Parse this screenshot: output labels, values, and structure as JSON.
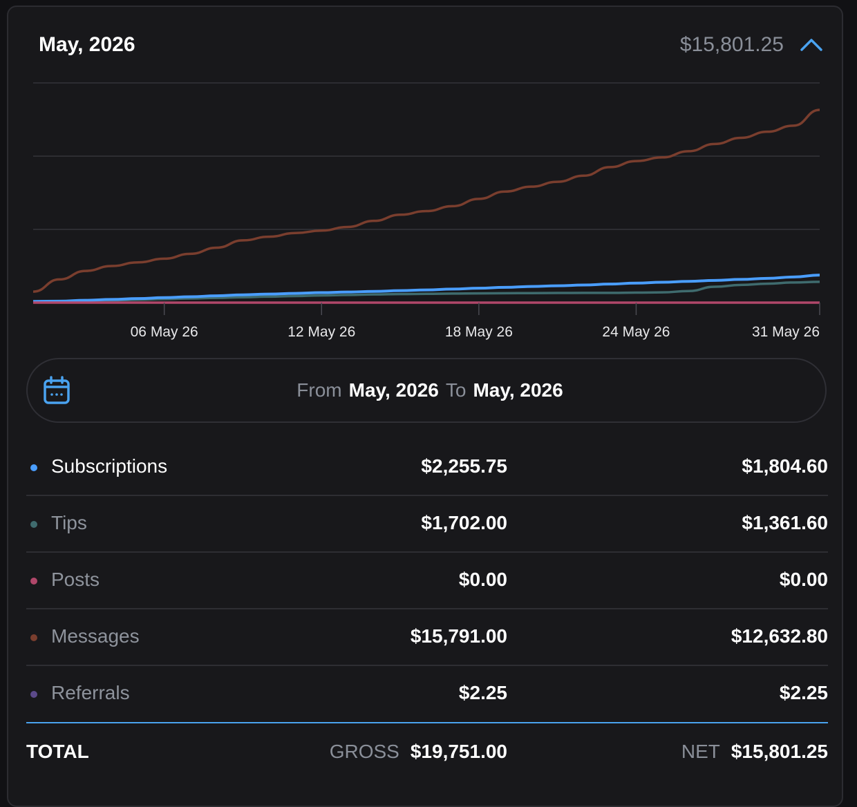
{
  "header": {
    "title": "May, 2026",
    "total": "$15,801.25"
  },
  "colors": {
    "subscriptions": "#4a9eff",
    "tips": "#3f6b6e",
    "posts": "#b0476a",
    "messages": "#7a3e2e",
    "referrals": "#5c4a8a",
    "accent": "#4aa3f0"
  },
  "range": {
    "from_label": "From",
    "from_value": "May, 2026",
    "to_label": "To",
    "to_value": "May, 2026"
  },
  "chart_data": {
    "type": "line",
    "x": [
      "01 May 26",
      "02 May 26",
      "03 May 26",
      "04 May 26",
      "05 May 26",
      "06 May 26",
      "07 May 26",
      "08 May 26",
      "09 May 26",
      "10 May 26",
      "11 May 26",
      "12 May 26",
      "13 May 26",
      "14 May 26",
      "15 May 26",
      "16 May 26",
      "17 May 26",
      "18 May 26",
      "19 May 26",
      "20 May 26",
      "21 May 26",
      "22 May 26",
      "23 May 26",
      "24 May 26",
      "25 May 26",
      "26 May 26",
      "27 May 26",
      "28 May 26",
      "29 May 26",
      "30 May 26",
      "31 May 26"
    ],
    "tick_labels": [
      "06 May 26",
      "12 May 26",
      "18 May 26",
      "24 May 26",
      "31 May 26"
    ],
    "ylim": [
      0,
      18000
    ],
    "grid": true,
    "series": [
      {
        "name": "Messages",
        "values": [
          900,
          1900,
          2600,
          3000,
          3300,
          3600,
          4000,
          4500,
          5100,
          5400,
          5700,
          5900,
          6200,
          6700,
          7200,
          7500,
          7900,
          8500,
          9100,
          9500,
          9900,
          10400,
          11100,
          11600,
          11900,
          12400,
          13000,
          13500,
          14000,
          14500,
          15791
        ]
      },
      {
        "name": "Subscriptions",
        "values": [
          100,
          120,
          190,
          260,
          330,
          410,
          480,
          560,
          640,
          700,
          760,
          820,
          870,
          920,
          980,
          1040,
          1110,
          1180,
          1250,
          1320,
          1380,
          1440,
          1520,
          1600,
          1670,
          1740,
          1820,
          1900,
          1990,
          2100,
          2255.75
        ]
      },
      {
        "name": "Tips",
        "values": [
          50,
          100,
          130,
          180,
          230,
          290,
          340,
          390,
          440,
          490,
          540,
          590,
          630,
          670,
          700,
          720,
          740,
          760,
          770,
          780,
          790,
          800,
          800,
          820,
          840,
          950,
          1300,
          1450,
          1550,
          1650,
          1702
        ]
      },
      {
        "name": "Posts",
        "values": [
          0,
          0,
          0,
          0,
          0,
          0,
          0,
          0,
          0,
          0,
          0,
          0,
          0,
          0,
          0,
          0,
          0,
          0,
          0,
          0,
          0,
          0,
          0,
          0,
          0,
          0,
          0,
          0,
          0,
          0,
          0
        ]
      },
      {
        "name": "Referrals",
        "values": [
          0,
          0,
          0,
          0,
          0,
          0,
          0,
          0,
          0,
          0,
          0,
          0,
          0,
          0,
          0,
          0,
          0,
          0,
          0,
          0,
          0,
          0,
          0,
          0,
          0,
          0,
          0,
          0,
          0,
          0,
          2.25
        ]
      }
    ]
  },
  "rows": [
    {
      "name": "Subscriptions",
      "gross": "$2,255.75",
      "net": "$1,804.60",
      "active": true
    },
    {
      "name": "Tips",
      "gross": "$1,702.00",
      "net": "$1,361.60",
      "active": false
    },
    {
      "name": "Posts",
      "gross": "$0.00",
      "net": "$0.00",
      "active": false
    },
    {
      "name": "Messages",
      "gross": "$15,791.00",
      "net": "$12,632.80",
      "active": false
    },
    {
      "name": "Referrals",
      "gross": "$2.25",
      "net": "$2.25",
      "active": false
    }
  ],
  "totals": {
    "label": "TOTAL",
    "gross_caption": "GROSS",
    "gross_value": "$19,751.00",
    "net_caption": "NET",
    "net_value": "$15,801.25"
  }
}
